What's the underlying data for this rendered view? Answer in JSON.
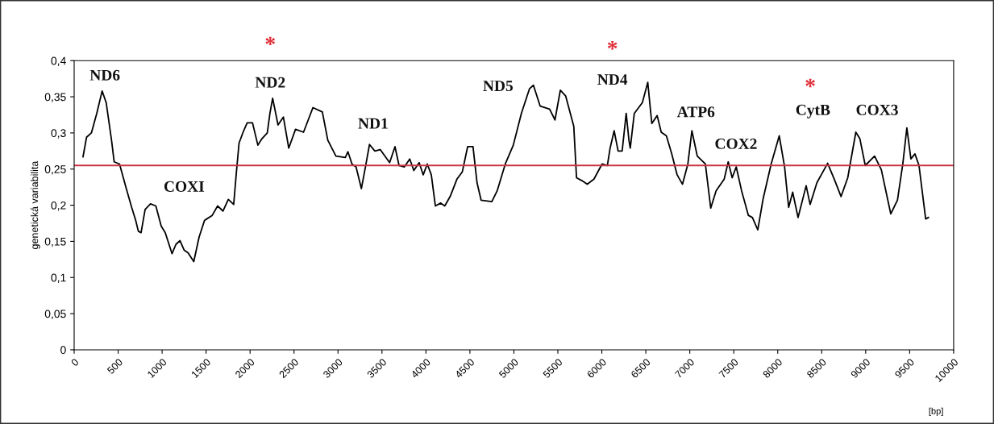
{
  "chart_data": {
    "type": "line",
    "ylabel": "genetická variabilita",
    "xlabel": "[bp]",
    "xlim": [
      0,
      10000
    ],
    "xticks": [
      0,
      500,
      1000,
      1500,
      2000,
      2500,
      3000,
      3500,
      4000,
      4500,
      5000,
      5500,
      6000,
      6500,
      7000,
      7500,
      8000,
      8500,
      9000,
      9500,
      10000
    ],
    "ylim": [
      0,
      0.4
    ],
    "yticks": [
      {
        "value": 0,
        "label": "0"
      },
      {
        "value": 0.05,
        "label": "0,05"
      },
      {
        "value": 0.1,
        "label": "0,1"
      },
      {
        "value": 0.15,
        "label": "0,15"
      },
      {
        "value": 0.2,
        "label": "0,2"
      },
      {
        "value": 0.25,
        "label": "0,25"
      },
      {
        "value": 0.3,
        "label": "0,3"
      },
      {
        "value": 0.35,
        "label": "0,35"
      },
      {
        "value": 0.4,
        "label": "0,4"
      }
    ],
    "grid": false,
    "legend": false,
    "marker": "none",
    "line_style": "solid",
    "series": [
      {
        "color": "#000000",
        "x": [
          101,
          141,
          196,
          257,
          318,
          364,
          425,
          455,
          516,
          593,
          654,
          700,
          730,
          761,
          807,
          868,
          929,
          990,
          1036,
          1113,
          1158,
          1204,
          1250,
          1296,
          1360,
          1421,
          1482,
          1570,
          1631,
          1692,
          1753,
          1814,
          1845,
          1875,
          1921,
          1967,
          2028,
          2089,
          2135,
          2196,
          2226,
          2257,
          2318,
          2379,
          2440,
          2517,
          2608,
          2715,
          2822,
          2884,
          2976,
          3083,
          3113,
          3159,
          3205,
          3266,
          3312,
          3358,
          3419,
          3480,
          3587,
          3648,
          3694,
          3755,
          3816,
          3862,
          3923,
          3969,
          4015,
          4061,
          4107,
          4168,
          4214,
          4275,
          4352,
          4413,
          4474,
          4535,
          4581,
          4627,
          4749,
          4810,
          4902,
          4993,
          5085,
          5177,
          5222,
          5299,
          5406,
          5467,
          5528,
          5589,
          5681,
          5712,
          5773,
          5834,
          5910,
          6002,
          6063,
          6094,
          6140,
          6185,
          6231,
          6277,
          6308,
          6323,
          6369,
          6461,
          6522,
          6568,
          6629,
          6675,
          6734,
          6795,
          6856,
          6917,
          6978,
          7024,
          7085,
          7177,
          7238,
          7299,
          7391,
          7437,
          7482,
          7528,
          7589,
          7666,
          7712,
          7773,
          7834,
          7925,
          8017,
          8078,
          8124,
          8170,
          8231,
          8323,
          8368,
          8445,
          8567,
          8643,
          8720,
          8796,
          8888,
          8934,
          8995,
          9101,
          9178,
          9285,
          9361,
          9422,
          9468,
          9514,
          9560,
          9606,
          9682,
          9713
        ],
        "values": [
          0.267,
          0.294,
          0.3,
          0.327,
          0.358,
          0.342,
          0.29,
          0.26,
          0.257,
          0.223,
          0.197,
          0.179,
          0.164,
          0.162,
          0.194,
          0.202,
          0.199,
          0.171,
          0.162,
          0.133,
          0.146,
          0.151,
          0.138,
          0.134,
          0.122,
          0.156,
          0.179,
          0.186,
          0.199,
          0.192,
          0.208,
          0.201,
          0.246,
          0.286,
          0.301,
          0.314,
          0.314,
          0.283,
          0.292,
          0.3,
          0.327,
          0.348,
          0.311,
          0.322,
          0.279,
          0.305,
          0.301,
          0.335,
          0.329,
          0.29,
          0.268,
          0.266,
          0.274,
          0.257,
          0.253,
          0.223,
          0.253,
          0.284,
          0.275,
          0.277,
          0.259,
          0.281,
          0.255,
          0.253,
          0.264,
          0.248,
          0.259,
          0.242,
          0.257,
          0.242,
          0.199,
          0.203,
          0.199,
          0.212,
          0.236,
          0.246,
          0.281,
          0.281,
          0.231,
          0.207,
          0.205,
          0.22,
          0.257,
          0.283,
          0.327,
          0.361,
          0.366,
          0.337,
          0.333,
          0.318,
          0.359,
          0.351,
          0.309,
          0.238,
          0.234,
          0.229,
          0.236,
          0.257,
          0.255,
          0.279,
          0.303,
          0.275,
          0.275,
          0.327,
          0.29,
          0.279,
          0.327,
          0.342,
          0.37,
          0.313,
          0.324,
          0.301,
          0.296,
          0.271,
          0.242,
          0.229,
          0.257,
          0.303,
          0.268,
          0.257,
          0.196,
          0.22,
          0.236,
          0.26,
          0.238,
          0.253,
          0.22,
          0.186,
          0.183,
          0.166,
          0.209,
          0.257,
          0.296,
          0.253,
          0.197,
          0.218,
          0.183,
          0.227,
          0.201,
          0.231,
          0.258,
          0.236,
          0.212,
          0.238,
          0.301,
          0.292,
          0.255,
          0.268,
          0.249,
          0.188,
          0.207,
          0.257,
          0.307,
          0.264,
          0.271,
          0.255,
          0.181,
          0.183
        ]
      }
    ],
    "ref_lines": [
      {
        "axis": "y",
        "value": 0.255,
        "color": "#cc3344",
        "line_style": "solid"
      }
    ],
    "annotations": [
      "ND6",
      "COXI",
      "ND2",
      "*",
      "ND1",
      "ND5",
      "ND4",
      "*",
      "ATP6",
      "COX2",
      "CytB",
      "*",
      "COX3"
    ]
  }
}
